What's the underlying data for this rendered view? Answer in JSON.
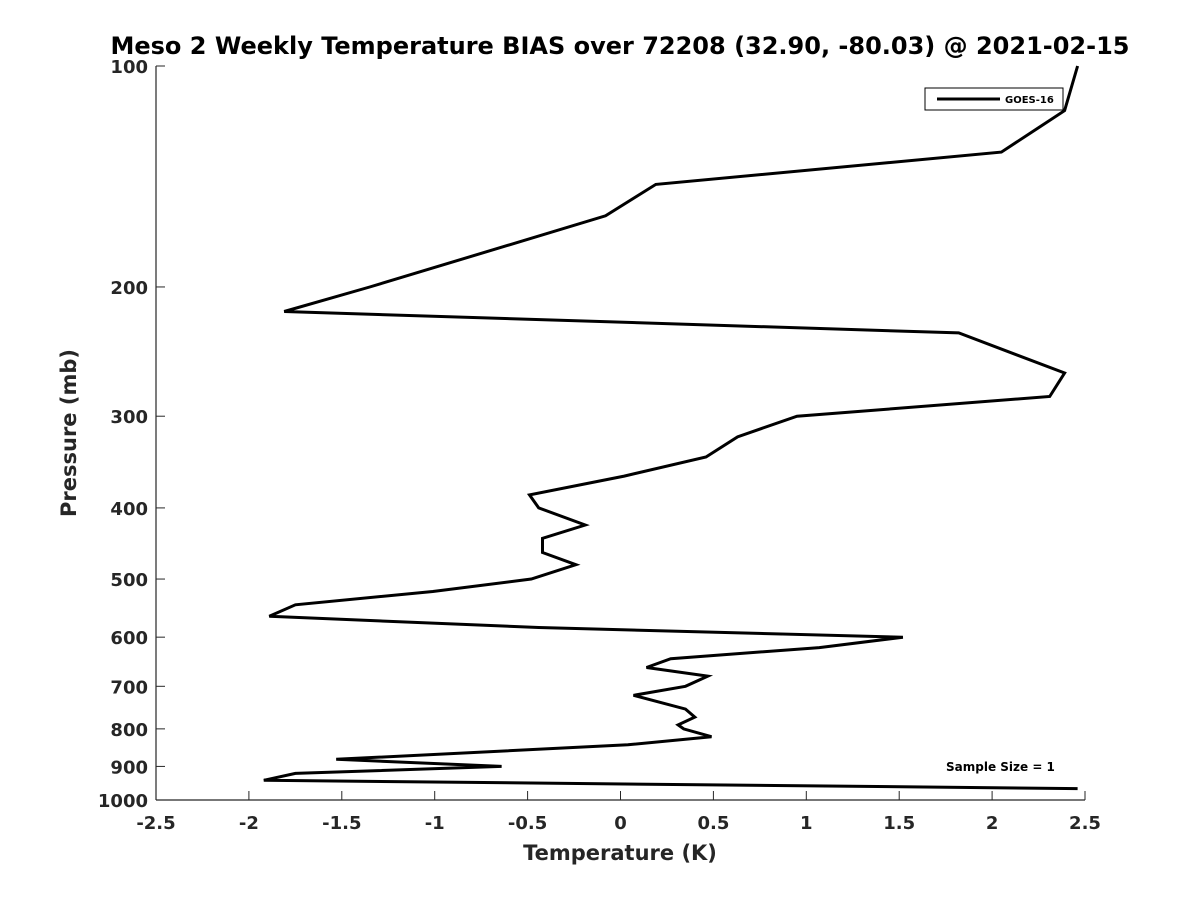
{
  "chart_data": {
    "type": "line",
    "title": "Meso 2 Weekly Temperature BIAS over 72208 (32.90, -80.03) @ 2021-02-15",
    "xlabel": "Temperature (K)",
    "ylabel": "Pressure (mb)",
    "xlim": [
      -2.5,
      2.5
    ],
    "ylim": [
      100,
      1000
    ],
    "y_scale": "log",
    "y_reversed": true,
    "x_ticks": [
      "-2.5",
      "-2",
      "-1.5",
      "-1",
      "-0.5",
      "0",
      "0.5",
      "1",
      "1.5",
      "2",
      "2.5"
    ],
    "x_tick_values": [
      -2.5,
      -2,
      -1.5,
      -1,
      -0.5,
      0,
      0.5,
      1,
      1.5,
      2,
      2.5
    ],
    "y_ticks": [
      "100",
      "200",
      "300",
      "400",
      "500",
      "600",
      "700",
      "800",
      "900",
      "1000"
    ],
    "y_tick_values": [
      100,
      200,
      300,
      400,
      500,
      600,
      700,
      800,
      900,
      1000
    ],
    "grid": false,
    "legend_position": "top-right",
    "annotation": "Sample Size = 1",
    "series": [
      {
        "name": "GOES-16",
        "color": "#000000",
        "points": [
          {
            "x": 2.46,
            "p": 100
          },
          {
            "x": 2.39,
            "p": 115
          },
          {
            "x": 2.05,
            "p": 131
          },
          {
            "x": 0.19,
            "p": 145
          },
          {
            "x": -0.08,
            "p": 160
          },
          {
            "x": -1.35,
            "p": 200
          },
          {
            "x": -1.81,
            "p": 216
          },
          {
            "x": 1.82,
            "p": 231
          },
          {
            "x": 2.39,
            "p": 262
          },
          {
            "x": 2.31,
            "p": 282
          },
          {
            "x": 0.95,
            "p": 300
          },
          {
            "x": 0.63,
            "p": 320
          },
          {
            "x": 0.46,
            "p": 341
          },
          {
            "x": 0.02,
            "p": 362
          },
          {
            "x": -0.49,
            "p": 384
          },
          {
            "x": -0.44,
            "p": 400
          },
          {
            "x": -0.19,
            "p": 422
          },
          {
            "x": -0.42,
            "p": 440
          },
          {
            "x": -0.42,
            "p": 460
          },
          {
            "x": -0.24,
            "p": 478
          },
          {
            "x": -0.48,
            "p": 500
          },
          {
            "x": -1.01,
            "p": 520
          },
          {
            "x": -1.75,
            "p": 542
          },
          {
            "x": -1.89,
            "p": 562
          },
          {
            "x": -0.44,
            "p": 582
          },
          {
            "x": 1.52,
            "p": 600
          },
          {
            "x": 1.07,
            "p": 620
          },
          {
            "x": 0.27,
            "p": 642
          },
          {
            "x": 0.14,
            "p": 660
          },
          {
            "x": 0.47,
            "p": 678
          },
          {
            "x": 0.35,
            "p": 700
          },
          {
            "x": 0.07,
            "p": 720
          },
          {
            "x": 0.35,
            "p": 752
          },
          {
            "x": 0.4,
            "p": 771
          },
          {
            "x": 0.31,
            "p": 790
          },
          {
            "x": 0.34,
            "p": 800
          },
          {
            "x": 0.49,
            "p": 820
          },
          {
            "x": 0.04,
            "p": 841
          },
          {
            "x": -1.53,
            "p": 880
          },
          {
            "x": -0.64,
            "p": 900
          },
          {
            "x": -1.75,
            "p": 920
          },
          {
            "x": -1.92,
            "p": 940
          },
          {
            "x": 2.46,
            "p": 965
          }
        ]
      }
    ]
  }
}
